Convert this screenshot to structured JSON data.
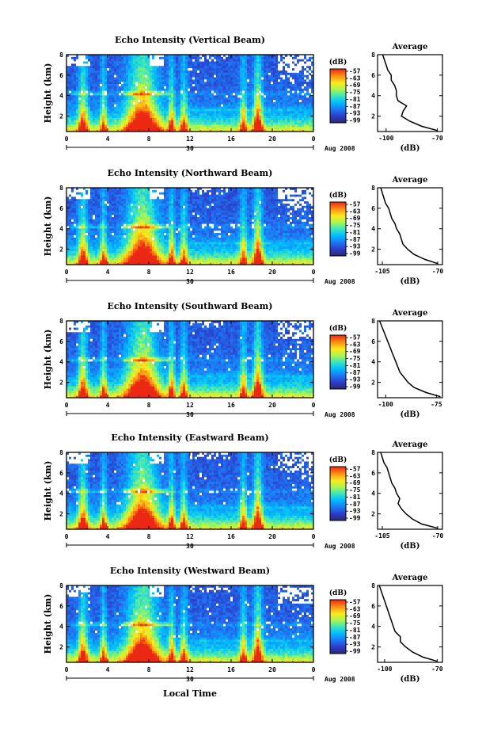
{
  "common": {
    "height_label": "Height (km)",
    "x_label": "Local Time",
    "date_label": "Aug 2008",
    "day_label": "30",
    "units_label": "(dB)",
    "avg_title": "Average",
    "height_ticks": [
      "2",
      "4",
      "6",
      "8"
    ],
    "time_ticks": [
      "0",
      "4",
      "8",
      "12",
      "16",
      "20",
      "0"
    ],
    "colorbar_ticks": [
      "-57",
      "-63",
      "-69",
      "-75",
      "-81",
      "-87",
      "-93",
      "-99"
    ]
  },
  "chart_data": [
    {
      "type": "heatmap",
      "title": "Echo Intensity (Vertical Beam)",
      "x_range_hours": [
        0,
        24
      ],
      "y_range_km": [
        0.5,
        8
      ],
      "color_range_db": [
        -99,
        -57
      ],
      "color_levels_db": [
        -57,
        -63,
        -69,
        -75,
        -81,
        -87,
        -93,
        -99
      ],
      "average_profile": {
        "x_ticks": [
          "-100",
          "-70"
        ],
        "x_range": [
          -105,
          -67
        ],
        "y_range": [
          0.5,
          8
        ],
        "height_km": [
          0.6,
          1.0,
          1.5,
          2.0,
          2.5,
          3.0,
          3.5,
          4.0,
          4.5,
          5.0,
          5.5,
          6.0,
          6.5,
          7.0,
          7.5,
          8.0
        ],
        "db": [
          -70,
          -79,
          -86,
          -91,
          -90,
          -88,
          -93,
          -94,
          -94,
          -95,
          -97,
          -97,
          -99,
          -100,
          -101,
          -102
        ]
      }
    },
    {
      "type": "heatmap",
      "title": "Echo Intensity (Northward Beam)",
      "x_range_hours": [
        0,
        24
      ],
      "y_range_km": [
        0.5,
        8
      ],
      "color_range_db": [
        -99,
        -57
      ],
      "color_levels_db": [
        -57,
        -63,
        -69,
        -75,
        -81,
        -87,
        -93,
        -99
      ],
      "average_profile": {
        "x_ticks": [
          "-105",
          "-70"
        ],
        "x_range": [
          -108,
          -67
        ],
        "y_range": [
          0.5,
          8
        ],
        "height_km": [
          0.6,
          1.0,
          1.5,
          2.0,
          2.5,
          3.0,
          3.5,
          4.0,
          4.5,
          5.0,
          5.5,
          6.0,
          6.5,
          7.0,
          7.5,
          8.0
        ],
        "db": [
          -70,
          -78,
          -85,
          -89,
          -92,
          -93,
          -94,
          -96,
          -97,
          -99,
          -100,
          -101,
          -103,
          -104,
          -105,
          -106
        ]
      }
    },
    {
      "type": "heatmap",
      "title": "Echo Intensity (Southward Beam)",
      "x_range_hours": [
        0,
        24
      ],
      "y_range_km": [
        0.5,
        8
      ],
      "color_range_db": [
        -99,
        -57
      ],
      "color_levels_db": [
        -57,
        -63,
        -69,
        -75,
        -81,
        -87,
        -93,
        -99
      ],
      "average_profile": {
        "x_ticks": [
          "-100",
          "-75"
        ],
        "x_range": [
          -104,
          -72
        ],
        "y_range": [
          0.5,
          8
        ],
        "height_km": [
          0.6,
          1.0,
          1.5,
          2.0,
          2.5,
          3.0,
          3.5,
          4.0,
          4.5,
          5.0,
          5.5,
          6.0,
          6.5,
          7.0,
          7.5,
          8.0
        ],
        "db": [
          -73,
          -80,
          -86,
          -89,
          -91,
          -93,
          -94,
          -95,
          -96,
          -97,
          -98,
          -99,
          -100,
          -101,
          -102,
          -103
        ]
      }
    },
    {
      "type": "heatmap",
      "title": "Echo Intensity (Eastward Beam)",
      "x_range_hours": [
        0,
        24
      ],
      "y_range_km": [
        0.5,
        8
      ],
      "color_range_db": [
        -99,
        -57
      ],
      "color_levels_db": [
        -57,
        -63,
        -69,
        -75,
        -81,
        -87,
        -93,
        -99
      ],
      "average_profile": {
        "x_ticks": [
          "-105",
          "-70"
        ],
        "x_range": [
          -108,
          -67
        ],
        "y_range": [
          0.5,
          8
        ],
        "height_km": [
          0.6,
          1.0,
          1.5,
          2.0,
          2.5,
          3.0,
          3.5,
          4.0,
          4.5,
          5.0,
          5.5,
          6.0,
          6.5,
          7.0,
          7.5,
          8.0
        ],
        "db": [
          -70,
          -80,
          -86,
          -90,
          -93,
          -95,
          -94,
          -96,
          -97,
          -99,
          -100,
          -101,
          -102,
          -104,
          -105,
          -106
        ]
      }
    },
    {
      "type": "heatmap",
      "title": "Echo Intensity (Westward Beam)",
      "x_range_hours": [
        0,
        24
      ],
      "y_range_km": [
        0.5,
        8
      ],
      "color_range_db": [
        -99,
        -57
      ],
      "color_levels_db": [
        -57,
        -63,
        -69,
        -75,
        -81,
        -87,
        -93,
        -99
      ],
      "average_profile": {
        "x_ticks": [
          "-100",
          "-70"
        ],
        "x_range": [
          -104,
          -67
        ],
        "y_range": [
          0.5,
          8
        ],
        "height_km": [
          0.6,
          1.0,
          1.5,
          2.0,
          2.5,
          3.0,
          3.5,
          4.0,
          4.5,
          5.0,
          5.5,
          6.0,
          6.5,
          7.0,
          7.5,
          8.0
        ],
        "db": [
          -70,
          -78,
          -84,
          -88,
          -91,
          -91,
          -94,
          -95,
          -96,
          -97,
          -98,
          -99,
          -100,
          -101,
          -102,
          -103
        ]
      }
    }
  ]
}
